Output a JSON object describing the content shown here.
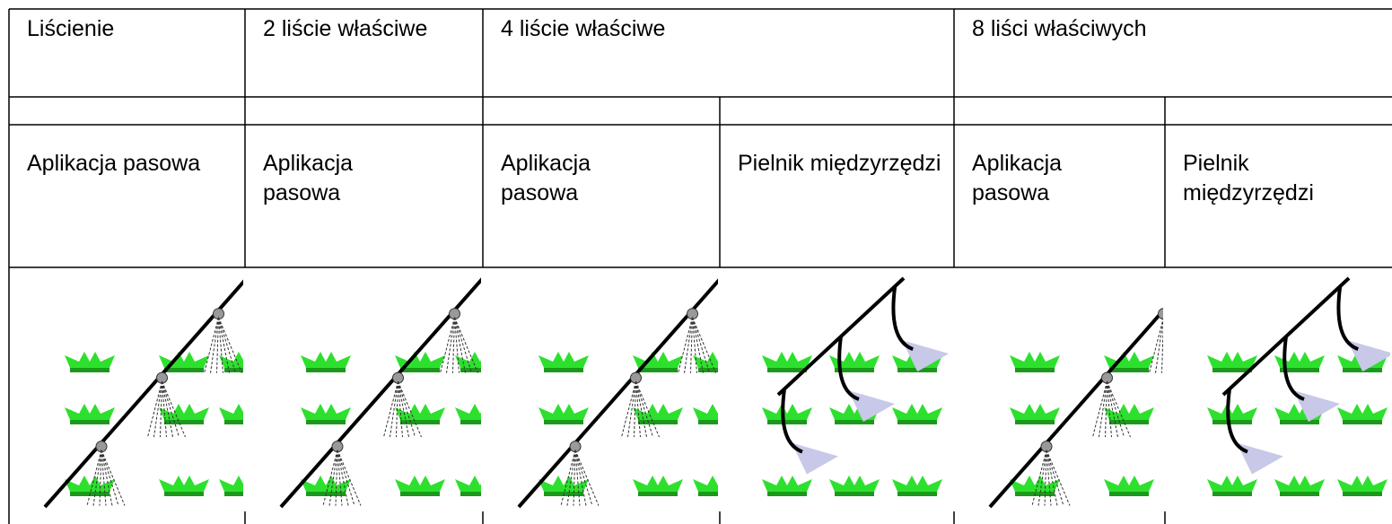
{
  "table": {
    "header": [
      "Liścienie",
      "2 liście właściwe",
      "4 liście właściwe",
      "8 liści właściwych"
    ],
    "methods": [
      "Aplikacja pasowa",
      "Aplikacja pasowa",
      "Aplikacja pasowa",
      "Pielnik międzyrzędzi",
      "Aplikacja pasowa",
      "Pielnik międzyrzędzi"
    ]
  }
}
